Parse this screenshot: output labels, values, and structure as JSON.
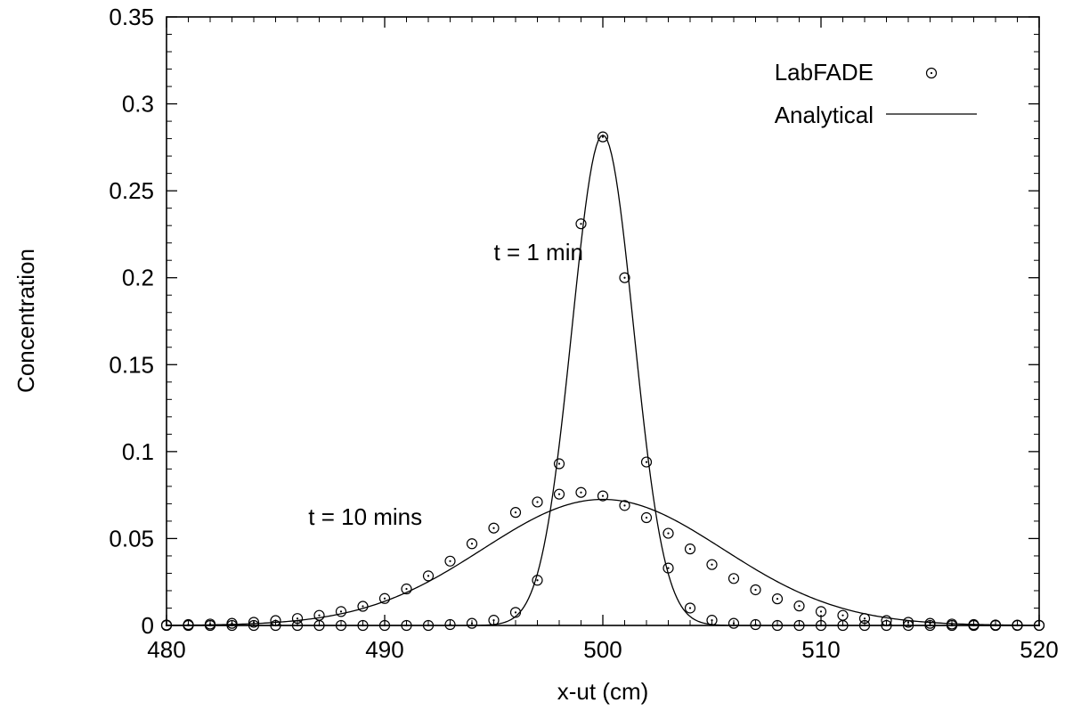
{
  "chart_data": {
    "type": "scatter",
    "xlabel": "x-ut (cm)",
    "ylabel": "Concentration",
    "xlim": [
      480,
      520
    ],
    "ylim": [
      0,
      0.35
    ],
    "x_ticks": [
      480,
      490,
      500,
      510,
      520
    ],
    "x_tick_labels": [
      "480",
      "490",
      "500",
      "510",
      "520"
    ],
    "y_ticks": [
      0,
      0.05,
      0.1,
      0.15,
      0.2,
      0.25,
      0.3,
      0.35
    ],
    "y_tick_labels": [
      "0",
      "0.05",
      "0.1",
      "0.15",
      "0.2",
      "0.25",
      "0.3",
      "0.35"
    ],
    "grid": false,
    "legend": {
      "position": "top-right",
      "entries": [
        {
          "label": "LabFADE",
          "marker": "circle-dot"
        },
        {
          "label": "Analytical",
          "marker": "line"
        }
      ]
    },
    "annotations": [
      {
        "text": "t = 1 min",
        "x": 495,
        "y": 0.21
      },
      {
        "text": "t = 10 mins",
        "x": 486.5,
        "y": 0.058
      }
    ],
    "analytical_curves": [
      {
        "label": "t = 1 min",
        "center": 500,
        "peak": 0.282,
        "sigma": 1.414
      },
      {
        "label": "t = 10 mins",
        "center": 500,
        "peak": 0.0725,
        "sigma": 5.5
      }
    ],
    "series": [
      {
        "name": "LabFADE",
        "group": "t = 1 min",
        "x": [
          480,
          481,
          482,
          483,
          484,
          485,
          486,
          487,
          488,
          489,
          490,
          491,
          492,
          493,
          494,
          495,
          496,
          497,
          498,
          499,
          500,
          501,
          502,
          503,
          504,
          505,
          506,
          507,
          508,
          509,
          510,
          511,
          512,
          513,
          514,
          515,
          516,
          517,
          518,
          519,
          520
        ],
        "y": [
          0,
          0,
          0,
          0,
          0,
          0,
          0,
          0,
          0,
          0,
          0,
          0,
          0,
          0.0005,
          0.0012,
          0.003,
          0.0075,
          0.026,
          0.093,
          0.231,
          0.281,
          0.2,
          0.094,
          0.033,
          0.01,
          0.003,
          0.0012,
          0.0005,
          0,
          0,
          0,
          0,
          0,
          0,
          0,
          0,
          0,
          0,
          0,
          0,
          0
        ]
      },
      {
        "name": "LabFADE",
        "group": "t = 10 mins",
        "x": [
          480,
          481,
          482,
          483,
          484,
          485,
          486,
          487,
          488,
          489,
          490,
          491,
          492,
          493,
          494,
          495,
          496,
          497,
          498,
          499,
          500,
          501,
          502,
          503,
          504,
          505,
          506,
          507,
          508,
          509,
          510,
          511,
          512,
          513,
          514,
          515,
          516,
          517,
          518,
          519,
          520
        ],
        "y": [
          0.0003,
          0.0005,
          0.0008,
          0.0012,
          0.0018,
          0.0028,
          0.004,
          0.0058,
          0.008,
          0.011,
          0.0155,
          0.021,
          0.0285,
          0.037,
          0.047,
          0.056,
          0.065,
          0.071,
          0.0755,
          0.0765,
          0.0745,
          0.069,
          0.062,
          0.053,
          0.044,
          0.035,
          0.027,
          0.0205,
          0.0153,
          0.0112,
          0.008,
          0.0058,
          0.004,
          0.0028,
          0.0018,
          0.0012,
          0.0008,
          0.0005,
          0.0003,
          0.0002,
          0.0001
        ]
      }
    ]
  }
}
